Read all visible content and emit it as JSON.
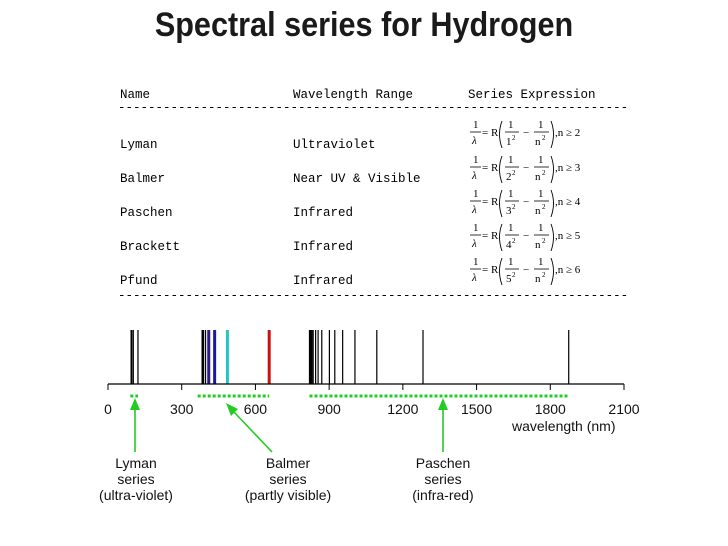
{
  "title": "Spectral series for Hydrogen",
  "table": {
    "headers": [
      "Name",
      "Wavelength Range",
      "Series Expression"
    ],
    "rows": [
      {
        "name": "Lyman",
        "range": "Ultraviolet",
        "n1": "1",
        "condition": ",n ≥ 2"
      },
      {
        "name": "Balmer",
        "range": "Near UV & Visible",
        "n1": "2",
        "condition": ",n ≥ 3"
      },
      {
        "name": "Paschen",
        "range": "Infrared",
        "n1": "3",
        "condition": ",n ≥ 4"
      },
      {
        "name": "Brackett",
        "range": "Infrared",
        "n1": "4",
        "condition": ",n ≥ 5"
      },
      {
        "name": "Pfund",
        "range": "Infrared",
        "n1": "5",
        "condition": ",n ≥ 6"
      }
    ],
    "formula": {
      "one": "1",
      "lambda": "λ",
      "R": "= R",
      "minus": "−",
      "n": "n",
      "exp": "2"
    }
  },
  "spectrum": {
    "axis_ticks": [
      "0",
      "300",
      "600",
      "900",
      "1200",
      "1500",
      "1800",
      "2100"
    ],
    "axis_values": [
      0,
      300,
      600,
      900,
      1200,
      1500,
      1800,
      2100
    ],
    "xlabel": "wavelength (nm)",
    "lines": [
      {
        "wl": 94,
        "color": "#000000"
      },
      {
        "wl": 95,
        "color": "#000000"
      },
      {
        "wl": 97,
        "color": "#000000"
      },
      {
        "wl": 103,
        "color": "#000000"
      },
      {
        "wl": 122,
        "color": "#000000"
      },
      {
        "wl": 383,
        "color": "#000000"
      },
      {
        "wl": 384,
        "color": "#000000"
      },
      {
        "wl": 386,
        "color": "#000000"
      },
      {
        "wl": 389,
        "color": "#000000"
      },
      {
        "wl": 397,
        "color": "#000000"
      },
      {
        "wl": 410,
        "color": "#2a1a8a"
      },
      {
        "wl": 434,
        "color": "#1a1aa0"
      },
      {
        "wl": 486,
        "color": "#22c6c6"
      },
      {
        "wl": 656,
        "color": "#cc1111"
      },
      {
        "wl": 820,
        "color": "#000000"
      },
      {
        "wl": 823,
        "color": "#000000"
      },
      {
        "wl": 826,
        "color": "#000000"
      },
      {
        "wl": 830,
        "color": "#000000"
      },
      {
        "wl": 835,
        "color": "#000000"
      },
      {
        "wl": 845,
        "color": "#000000"
      },
      {
        "wl": 855,
        "color": "#000000"
      },
      {
        "wl": 870,
        "color": "#000000"
      },
      {
        "wl": 901,
        "color": "#000000"
      },
      {
        "wl": 923,
        "color": "#000000"
      },
      {
        "wl": 955,
        "color": "#000000"
      },
      {
        "wl": 1005,
        "color": "#000000"
      },
      {
        "wl": 1094,
        "color": "#000000"
      },
      {
        "wl": 1282,
        "color": "#000000"
      },
      {
        "wl": 1875,
        "color": "#000000"
      }
    ],
    "ranges": [
      {
        "from": 91,
        "to": 122
      },
      {
        "from": 365,
        "to": 656
      },
      {
        "from": 820,
        "to": 1875
      }
    ]
  },
  "labels": [
    {
      "line1": "Lyman",
      "line2": "series",
      "line3": "(ultra-violet)"
    },
    {
      "line1": "Balmer",
      "line2": "series",
      "line3": "(partly visible)"
    },
    {
      "line1": "Paschen",
      "line2": "series",
      "line3": "(infra-red)"
    }
  ]
}
